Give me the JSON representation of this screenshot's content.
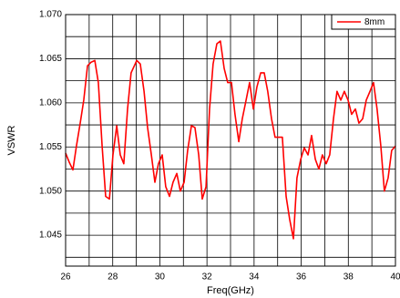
{
  "chart_data": {
    "type": "line",
    "xlabel": "Freq(GHz)",
    "ylabel": "VSWR",
    "x": [
      26.0,
      26.15,
      26.31,
      26.46,
      26.62,
      26.77,
      26.93,
      27.08,
      27.24,
      27.39,
      27.55,
      27.7,
      27.86,
      28.01,
      28.17,
      28.32,
      28.47,
      28.63,
      28.78,
      29.02,
      29.17,
      29.33,
      29.48,
      29.64,
      29.79,
      29.94,
      30.1,
      30.25,
      30.41,
      30.56,
      30.72,
      30.87,
      31.03,
      31.18,
      31.34,
      31.49,
      31.65,
      31.8,
      31.96,
      32.11,
      32.26,
      32.42,
      32.57,
      32.73,
      32.88,
      33.04,
      33.19,
      33.35,
      33.5,
      33.66,
      33.81,
      33.97,
      34.12,
      34.28,
      34.43,
      34.58,
      34.74,
      34.89,
      35.05,
      35.2,
      35.36,
      35.51,
      35.67,
      35.82,
      35.98,
      36.13,
      36.29,
      36.44,
      36.6,
      36.75,
      36.9,
      37.06,
      37.21,
      37.37,
      37.52,
      37.68,
      37.83,
      37.99,
      38.14,
      38.3,
      38.45,
      38.61,
      38.76,
      38.92,
      39.07,
      39.22,
      39.38,
      39.53,
      39.69,
      39.84,
      40.0
    ],
    "series": [
      {
        "name": "8mm",
        "color": "#ff0000",
        "values": [
          1.0543,
          1.0533,
          1.0524,
          1.0551,
          1.0577,
          1.0603,
          1.0642,
          1.0646,
          1.0648,
          1.0623,
          1.0551,
          1.0494,
          1.0491,
          1.0541,
          1.0574,
          1.0541,
          1.0531,
          1.0593,
          1.0634,
          1.0648,
          1.0644,
          1.0613,
          1.0572,
          1.0541,
          1.051,
          1.0531,
          1.0541,
          1.0505,
          1.0494,
          1.051,
          1.052,
          1.05,
          1.051,
          1.0546,
          1.0574,
          1.0572,
          1.0541,
          1.0491,
          1.0505,
          1.0593,
          1.0644,
          1.0667,
          1.067,
          1.0639,
          1.0623,
          1.0623,
          1.0587,
          1.0556,
          1.0582,
          1.0603,
          1.0623,
          1.0593,
          1.0618,
          1.0634,
          1.0634,
          1.0613,
          1.0582,
          1.0561,
          1.0561,
          1.0561,
          1.0494,
          1.0468,
          1.0446,
          1.0515,
          1.0536,
          1.0549,
          1.0541,
          1.0563,
          1.0536,
          1.0525,
          1.0541,
          1.0531,
          1.0541,
          1.0582,
          1.0613,
          1.0603,
          1.0613,
          1.0603,
          1.0587,
          1.0593,
          1.0577,
          1.0582,
          1.0603,
          1.0613,
          1.0623,
          1.0593,
          1.0551,
          1.05,
          1.0515,
          1.0546,
          1.0551
        ]
      }
    ],
    "xlim": [
      26,
      40
    ],
    "xticks": [
      26,
      28,
      30,
      32,
      34,
      36,
      38,
      40
    ],
    "ylim": [
      1.0415,
      1.07
    ],
    "yticks": [
      1.045,
      {
        "value": 1.05,
        "label": "1.050"
      },
      1.055,
      {
        "value": 1.06,
        "label": "1.060"
      },
      1.065,
      {
        "value": 1.07,
        "label": "1.070"
      }
    ],
    "minor_xticks": [
      27,
      29,
      31,
      33,
      35,
      37,
      39
    ],
    "minor_yticks": [
      1.0425,
      1.0475,
      1.0525,
      1.0575,
      1.0625,
      1.0675
    ],
    "grid": true,
    "legend": "upper right"
  }
}
